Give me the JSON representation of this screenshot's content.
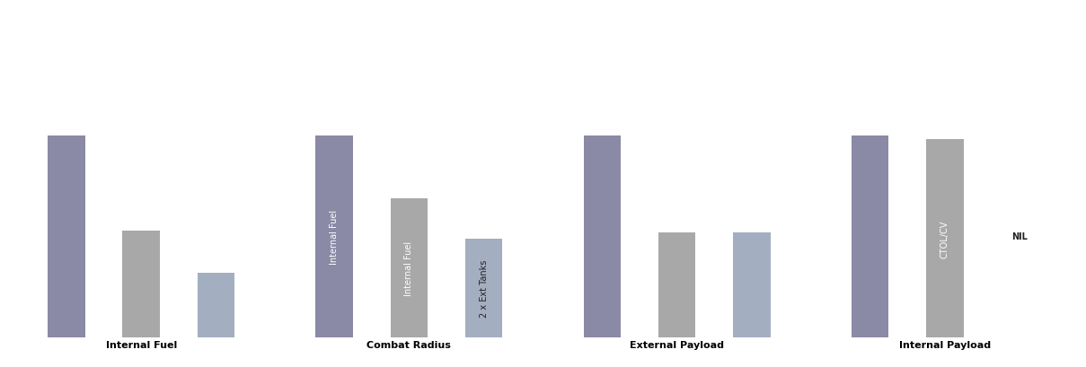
{
  "chart_data": [
    {
      "type": "bar",
      "xlabel": "Internal Fuel",
      "categories": [
        null,
        null,
        null
      ],
      "values": [
        100,
        53,
        32
      ],
      "colors": [
        "#8a89a6",
        "#a8a8a8",
        "#a3aec0"
      ],
      "bar_texts": [
        null,
        null,
        null
      ],
      "ylim": [
        0,
        100
      ],
      "yticks": [],
      "tick_labels": false,
      "grid": false
    },
    {
      "type": "bar",
      "xlabel": "Combat Radius",
      "categories": [
        null,
        null,
        null
      ],
      "values": [
        100,
        69,
        49
      ],
      "colors": [
        "#8a89a6",
        "#a8a8a8",
        "#a3aec0"
      ],
      "bar_texts": [
        "Internal Fuel",
        "Internal Fuel",
        "2 x Ext Tanks"
      ],
      "ylim": [
        0,
        100
      ],
      "yticks": [],
      "tick_labels": false,
      "grid": false
    },
    {
      "type": "bar",
      "xlabel": "External Payload",
      "categories": [
        null,
        null,
        null
      ],
      "values": [
        100,
        52,
        52
      ],
      "colors": [
        "#8a89a6",
        "#a8a8a8",
        "#a3aec0"
      ],
      "bar_texts": [
        null,
        null,
        null
      ],
      "ylim": [
        0,
        100
      ],
      "yticks": [],
      "tick_labels": false,
      "grid": false
    },
    {
      "type": "bar",
      "xlabel": "Internal Payload",
      "categories": [
        null,
        null,
        null
      ],
      "values": [
        100,
        98,
        0
      ],
      "colors": [
        "#8a89a6",
        "#a8a8a8",
        "#a3aec0"
      ],
      "bar_texts": [
        null,
        "CTOL/CV",
        "NIL"
      ],
      "ylim": [
        0,
        100
      ],
      "yticks": [],
      "tick_labels": false,
      "grid": false
    }
  ]
}
